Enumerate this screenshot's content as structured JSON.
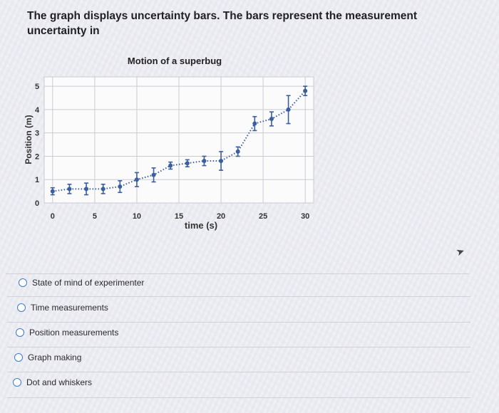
{
  "question": {
    "text": "The graph displays uncertainty bars. The bars represent the measurement uncertainty in"
  },
  "chart_data": {
    "type": "scatter",
    "title": "Motion of a superbug",
    "xlabel": "time (s)",
    "ylabel": "Position (m)",
    "xlim": [
      -1,
      31
    ],
    "ylim": [
      0,
      5.4
    ],
    "x_ticks": [
      "0",
      "5",
      "10",
      "15",
      "20",
      "25",
      "30"
    ],
    "y_ticks": [
      "0",
      "1",
      "2",
      "3",
      "4",
      "5"
    ],
    "grid": true,
    "trendline": "dotted",
    "points": [
      {
        "x": 0,
        "y": 0.5,
        "err": 0.15
      },
      {
        "x": 2,
        "y": 0.6,
        "err": 0.2
      },
      {
        "x": 4,
        "y": 0.6,
        "err": 0.25
      },
      {
        "x": 6,
        "y": 0.6,
        "err": 0.2
      },
      {
        "x": 8,
        "y": 0.7,
        "err": 0.25
      },
      {
        "x": 10,
        "y": 1.0,
        "err": 0.3
      },
      {
        "x": 12,
        "y": 1.2,
        "err": 0.3
      },
      {
        "x": 14,
        "y": 1.6,
        "err": 0.15
      },
      {
        "x": 16,
        "y": 1.7,
        "err": 0.15
      },
      {
        "x": 18,
        "y": 1.8,
        "err": 0.2
      },
      {
        "x": 20,
        "y": 1.8,
        "err": 0.4
      },
      {
        "x": 22,
        "y": 2.2,
        "err": 0.2
      },
      {
        "x": 24,
        "y": 3.4,
        "err": 0.3
      },
      {
        "x": 26,
        "y": 3.6,
        "err": 0.3
      },
      {
        "x": 28,
        "y": 4.0,
        "err": 0.6
      },
      {
        "x": 30,
        "y": 4.8,
        "err": 0.2
      }
    ]
  },
  "options": [
    {
      "label": "State of mind of experimenter"
    },
    {
      "label": "Time measurements"
    },
    {
      "label": "Position measurements"
    },
    {
      "label": "Graph making"
    },
    {
      "label": "Dot and whiskers"
    }
  ],
  "colors": {
    "marker": "#3b5e9e",
    "grid": "#c9cbd2",
    "radio": "#3f7bc6"
  }
}
